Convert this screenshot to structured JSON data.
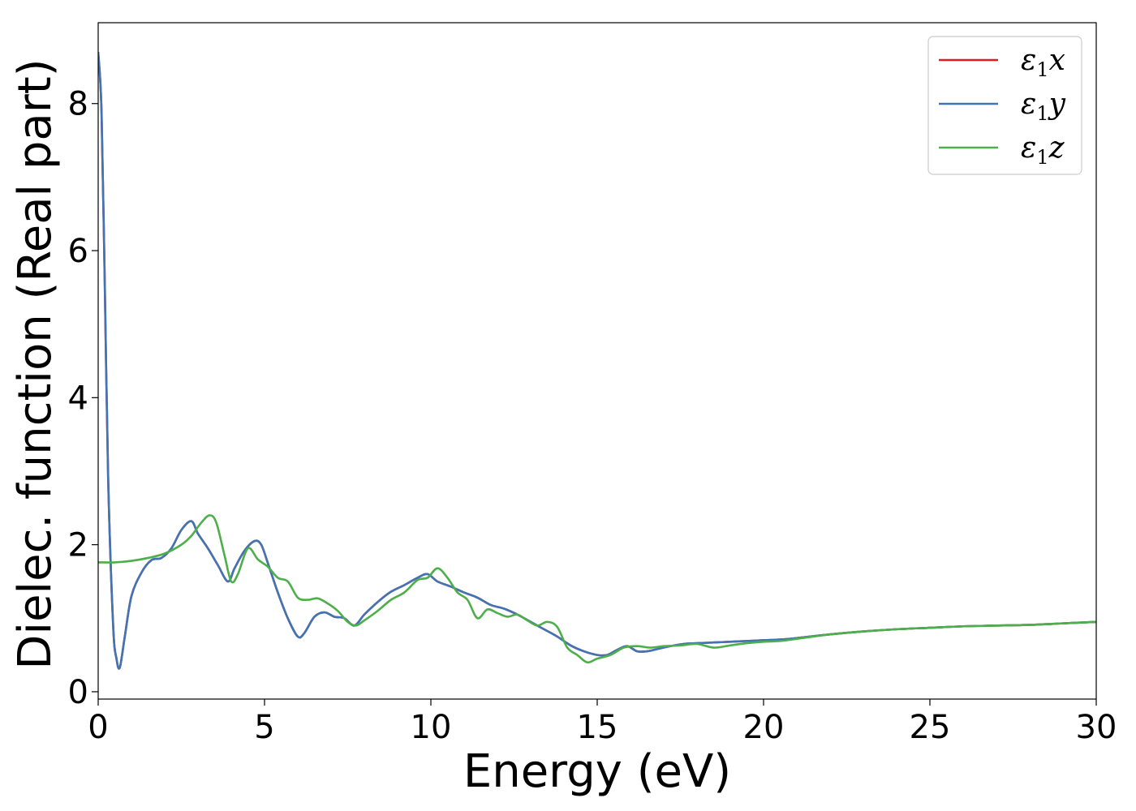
{
  "chart_data": {
    "type": "line",
    "title": "",
    "xlabel": "Energy (eV)",
    "ylabel": "Dielec. function (Real part)",
    "xlim": [
      0,
      30
    ],
    "ylim": [
      -0.1,
      9.1
    ],
    "xticks": [
      0,
      5,
      10,
      15,
      20,
      25,
      30
    ],
    "yticks": [
      0,
      2,
      4,
      6,
      8
    ],
    "xtick_labels": [
      "0",
      "5",
      "10",
      "15",
      "20",
      "25",
      "30"
    ],
    "ytick_labels": [
      "0",
      "2",
      "4",
      "6",
      "8"
    ],
    "grid": false,
    "legend_position": "top-right",
    "series": [
      {
        "name": "ε₁x",
        "legend_main": "ε",
        "legend_sub": "1",
        "legend_axis": "x",
        "color": "#e41a1c",
        "x": [
          0,
          0.1,
          0.2,
          0.3,
          0.45,
          0.55,
          0.65,
          0.8,
          1.0,
          1.3,
          1.6,
          1.9,
          2.2,
          2.5,
          2.8,
          3.0,
          3.3,
          3.6,
          3.9,
          4.1,
          4.4,
          4.7,
          4.9,
          5.1,
          5.4,
          5.7,
          6.0,
          6.2,
          6.5,
          6.8,
          7.1,
          7.4,
          7.7,
          8.0,
          8.4,
          8.8,
          9.2,
          9.6,
          9.9,
          10.2,
          10.6,
          11.0,
          11.4,
          11.8,
          12.2,
          12.6,
          13.0,
          13.4,
          13.8,
          14.2,
          14.6,
          15.0,
          15.3,
          15.6,
          15.9,
          16.2,
          16.5,
          16.8,
          17.2,
          17.6,
          18.0,
          18.5,
          19.0,
          19.5,
          20.0,
          20.5,
          21.0,
          22.0,
          23.0,
          24.0,
          25.0,
          26.0,
          27.0,
          28.0,
          29.0,
          30.0
        ],
        "y": [
          8.7,
          7.9,
          5.5,
          2.9,
          0.9,
          0.45,
          0.33,
          0.75,
          1.3,
          1.62,
          1.79,
          1.82,
          1.95,
          2.2,
          2.32,
          2.15,
          1.95,
          1.72,
          1.5,
          1.68,
          1.92,
          2.05,
          2.0,
          1.75,
          1.35,
          1.0,
          0.75,
          0.8,
          1.02,
          1.08,
          1.02,
          1.0,
          0.9,
          1.05,
          1.22,
          1.36,
          1.45,
          1.55,
          1.6,
          1.5,
          1.43,
          1.35,
          1.28,
          1.18,
          1.13,
          1.05,
          0.95,
          0.85,
          0.75,
          0.63,
          0.55,
          0.5,
          0.5,
          0.57,
          0.62,
          0.55,
          0.55,
          0.58,
          0.62,
          0.65,
          0.66,
          0.67,
          0.68,
          0.69,
          0.7,
          0.71,
          0.73,
          0.78,
          0.82,
          0.85,
          0.87,
          0.89,
          0.9,
          0.91,
          0.93,
          0.95
        ]
      },
      {
        "name": "ε₁y",
        "legend_main": "ε",
        "legend_sub": "1",
        "legend_axis": "y",
        "color": "#3f74b5",
        "x": [
          0,
          0.1,
          0.2,
          0.3,
          0.45,
          0.55,
          0.65,
          0.8,
          1.0,
          1.3,
          1.6,
          1.9,
          2.2,
          2.5,
          2.8,
          3.0,
          3.3,
          3.6,
          3.9,
          4.1,
          4.4,
          4.7,
          4.9,
          5.1,
          5.4,
          5.7,
          6.0,
          6.2,
          6.5,
          6.8,
          7.1,
          7.4,
          7.7,
          8.0,
          8.4,
          8.8,
          9.2,
          9.6,
          9.9,
          10.2,
          10.6,
          11.0,
          11.4,
          11.8,
          12.2,
          12.6,
          13.0,
          13.4,
          13.8,
          14.2,
          14.6,
          15.0,
          15.3,
          15.6,
          15.9,
          16.2,
          16.5,
          16.8,
          17.2,
          17.6,
          18.0,
          18.5,
          19.0,
          19.5,
          20.0,
          20.5,
          21.0,
          22.0,
          23.0,
          24.0,
          25.0,
          26.0,
          27.0,
          28.0,
          29.0,
          30.0
        ],
        "y": [
          8.7,
          7.9,
          5.5,
          2.9,
          0.9,
          0.45,
          0.33,
          0.75,
          1.3,
          1.62,
          1.79,
          1.82,
          1.95,
          2.2,
          2.32,
          2.15,
          1.95,
          1.72,
          1.5,
          1.68,
          1.92,
          2.05,
          2.0,
          1.75,
          1.35,
          1.0,
          0.75,
          0.8,
          1.02,
          1.08,
          1.02,
          1.0,
          0.9,
          1.05,
          1.22,
          1.36,
          1.45,
          1.55,
          1.6,
          1.5,
          1.43,
          1.35,
          1.28,
          1.18,
          1.13,
          1.05,
          0.95,
          0.85,
          0.75,
          0.63,
          0.55,
          0.5,
          0.5,
          0.57,
          0.62,
          0.55,
          0.55,
          0.58,
          0.62,
          0.65,
          0.66,
          0.67,
          0.68,
          0.69,
          0.7,
          0.71,
          0.73,
          0.78,
          0.82,
          0.85,
          0.87,
          0.89,
          0.9,
          0.91,
          0.93,
          0.95
        ]
      },
      {
        "name": "ε₁z",
        "legend_main": "ε",
        "legend_sub": "1",
        "legend_axis": "z",
        "color": "#4daf4a",
        "x": [
          0,
          0.5,
          1.0,
          1.5,
          2.0,
          2.5,
          2.8,
          3.1,
          3.35,
          3.55,
          3.8,
          4.0,
          4.2,
          4.5,
          4.8,
          5.1,
          5.4,
          5.7,
          6.0,
          6.3,
          6.6,
          6.9,
          7.2,
          7.5,
          7.75,
          8.0,
          8.4,
          8.8,
          9.2,
          9.6,
          9.9,
          10.2,
          10.5,
          10.8,
          11.1,
          11.4,
          11.7,
          12.0,
          12.3,
          12.6,
          12.9,
          13.2,
          13.5,
          13.8,
          14.1,
          14.4,
          14.7,
          15.0,
          15.4,
          15.8,
          16.2,
          16.6,
          17.0,
          17.5,
          18.0,
          18.5,
          19.0,
          19.5,
          20.0,
          20.5,
          21.0,
          22.0,
          23.0,
          24.0,
          25.0,
          26.0,
          27.0,
          28.0,
          29.0,
          30.0
        ],
        "y": [
          1.76,
          1.76,
          1.78,
          1.82,
          1.88,
          2.0,
          2.12,
          2.3,
          2.4,
          2.3,
          1.85,
          1.5,
          1.6,
          1.95,
          1.8,
          1.7,
          1.55,
          1.5,
          1.28,
          1.25,
          1.27,
          1.2,
          1.1,
          0.95,
          0.9,
          0.97,
          1.1,
          1.25,
          1.35,
          1.52,
          1.55,
          1.68,
          1.55,
          1.35,
          1.25,
          1.0,
          1.12,
          1.07,
          1.02,
          1.05,
          0.97,
          0.9,
          0.95,
          0.88,
          0.6,
          0.5,
          0.4,
          0.45,
          0.5,
          0.6,
          0.62,
          0.6,
          0.62,
          0.63,
          0.65,
          0.6,
          0.63,
          0.66,
          0.68,
          0.69,
          0.72,
          0.78,
          0.82,
          0.85,
          0.87,
          0.89,
          0.9,
          0.91,
          0.93,
          0.95
        ]
      }
    ]
  }
}
